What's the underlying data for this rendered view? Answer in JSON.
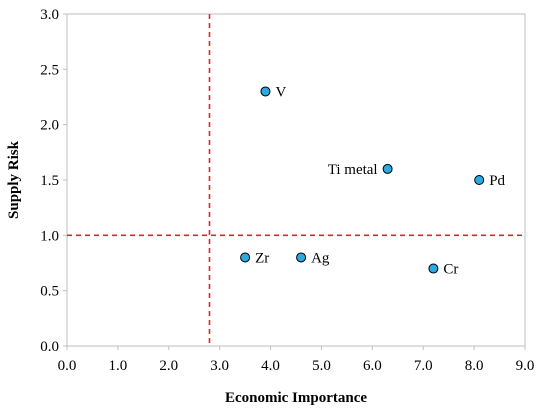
{
  "chart_data": {
    "type": "scatter",
    "title": "",
    "xlabel": "Economic Importance",
    "ylabel": "Supply Risk",
    "xlim": [
      0,
      9
    ],
    "ylim": [
      0,
      3
    ],
    "xticks": [
      "0.0",
      "1.0",
      "2.0",
      "3.0",
      "4.0",
      "5.0",
      "6.0",
      "7.0",
      "8.0",
      "9.0"
    ],
    "yticks": [
      "0.0",
      "0.5",
      "1.0",
      "1.5",
      "2.0",
      "2.5",
      "3.0"
    ],
    "grid": false,
    "points": [
      {
        "label": "V",
        "x": 3.9,
        "y": 2.3
      },
      {
        "label": "Ti metal",
        "x": 6.3,
        "y": 1.6
      },
      {
        "label": "Pd",
        "x": 8.1,
        "y": 1.5
      },
      {
        "label": "Zr",
        "x": 3.5,
        "y": 0.8
      },
      {
        "label": "Ag",
        "x": 4.6,
        "y": 0.8
      },
      {
        "label": "Cr",
        "x": 7.2,
        "y": 0.7
      }
    ],
    "threshold_lines": {
      "x": 2.8,
      "y": 1.0
    },
    "colors": {
      "marker_fill": "#29abe2",
      "marker_stroke": "#000000",
      "threshold": "#e8202a",
      "axis": "#bfbfbf"
    }
  }
}
